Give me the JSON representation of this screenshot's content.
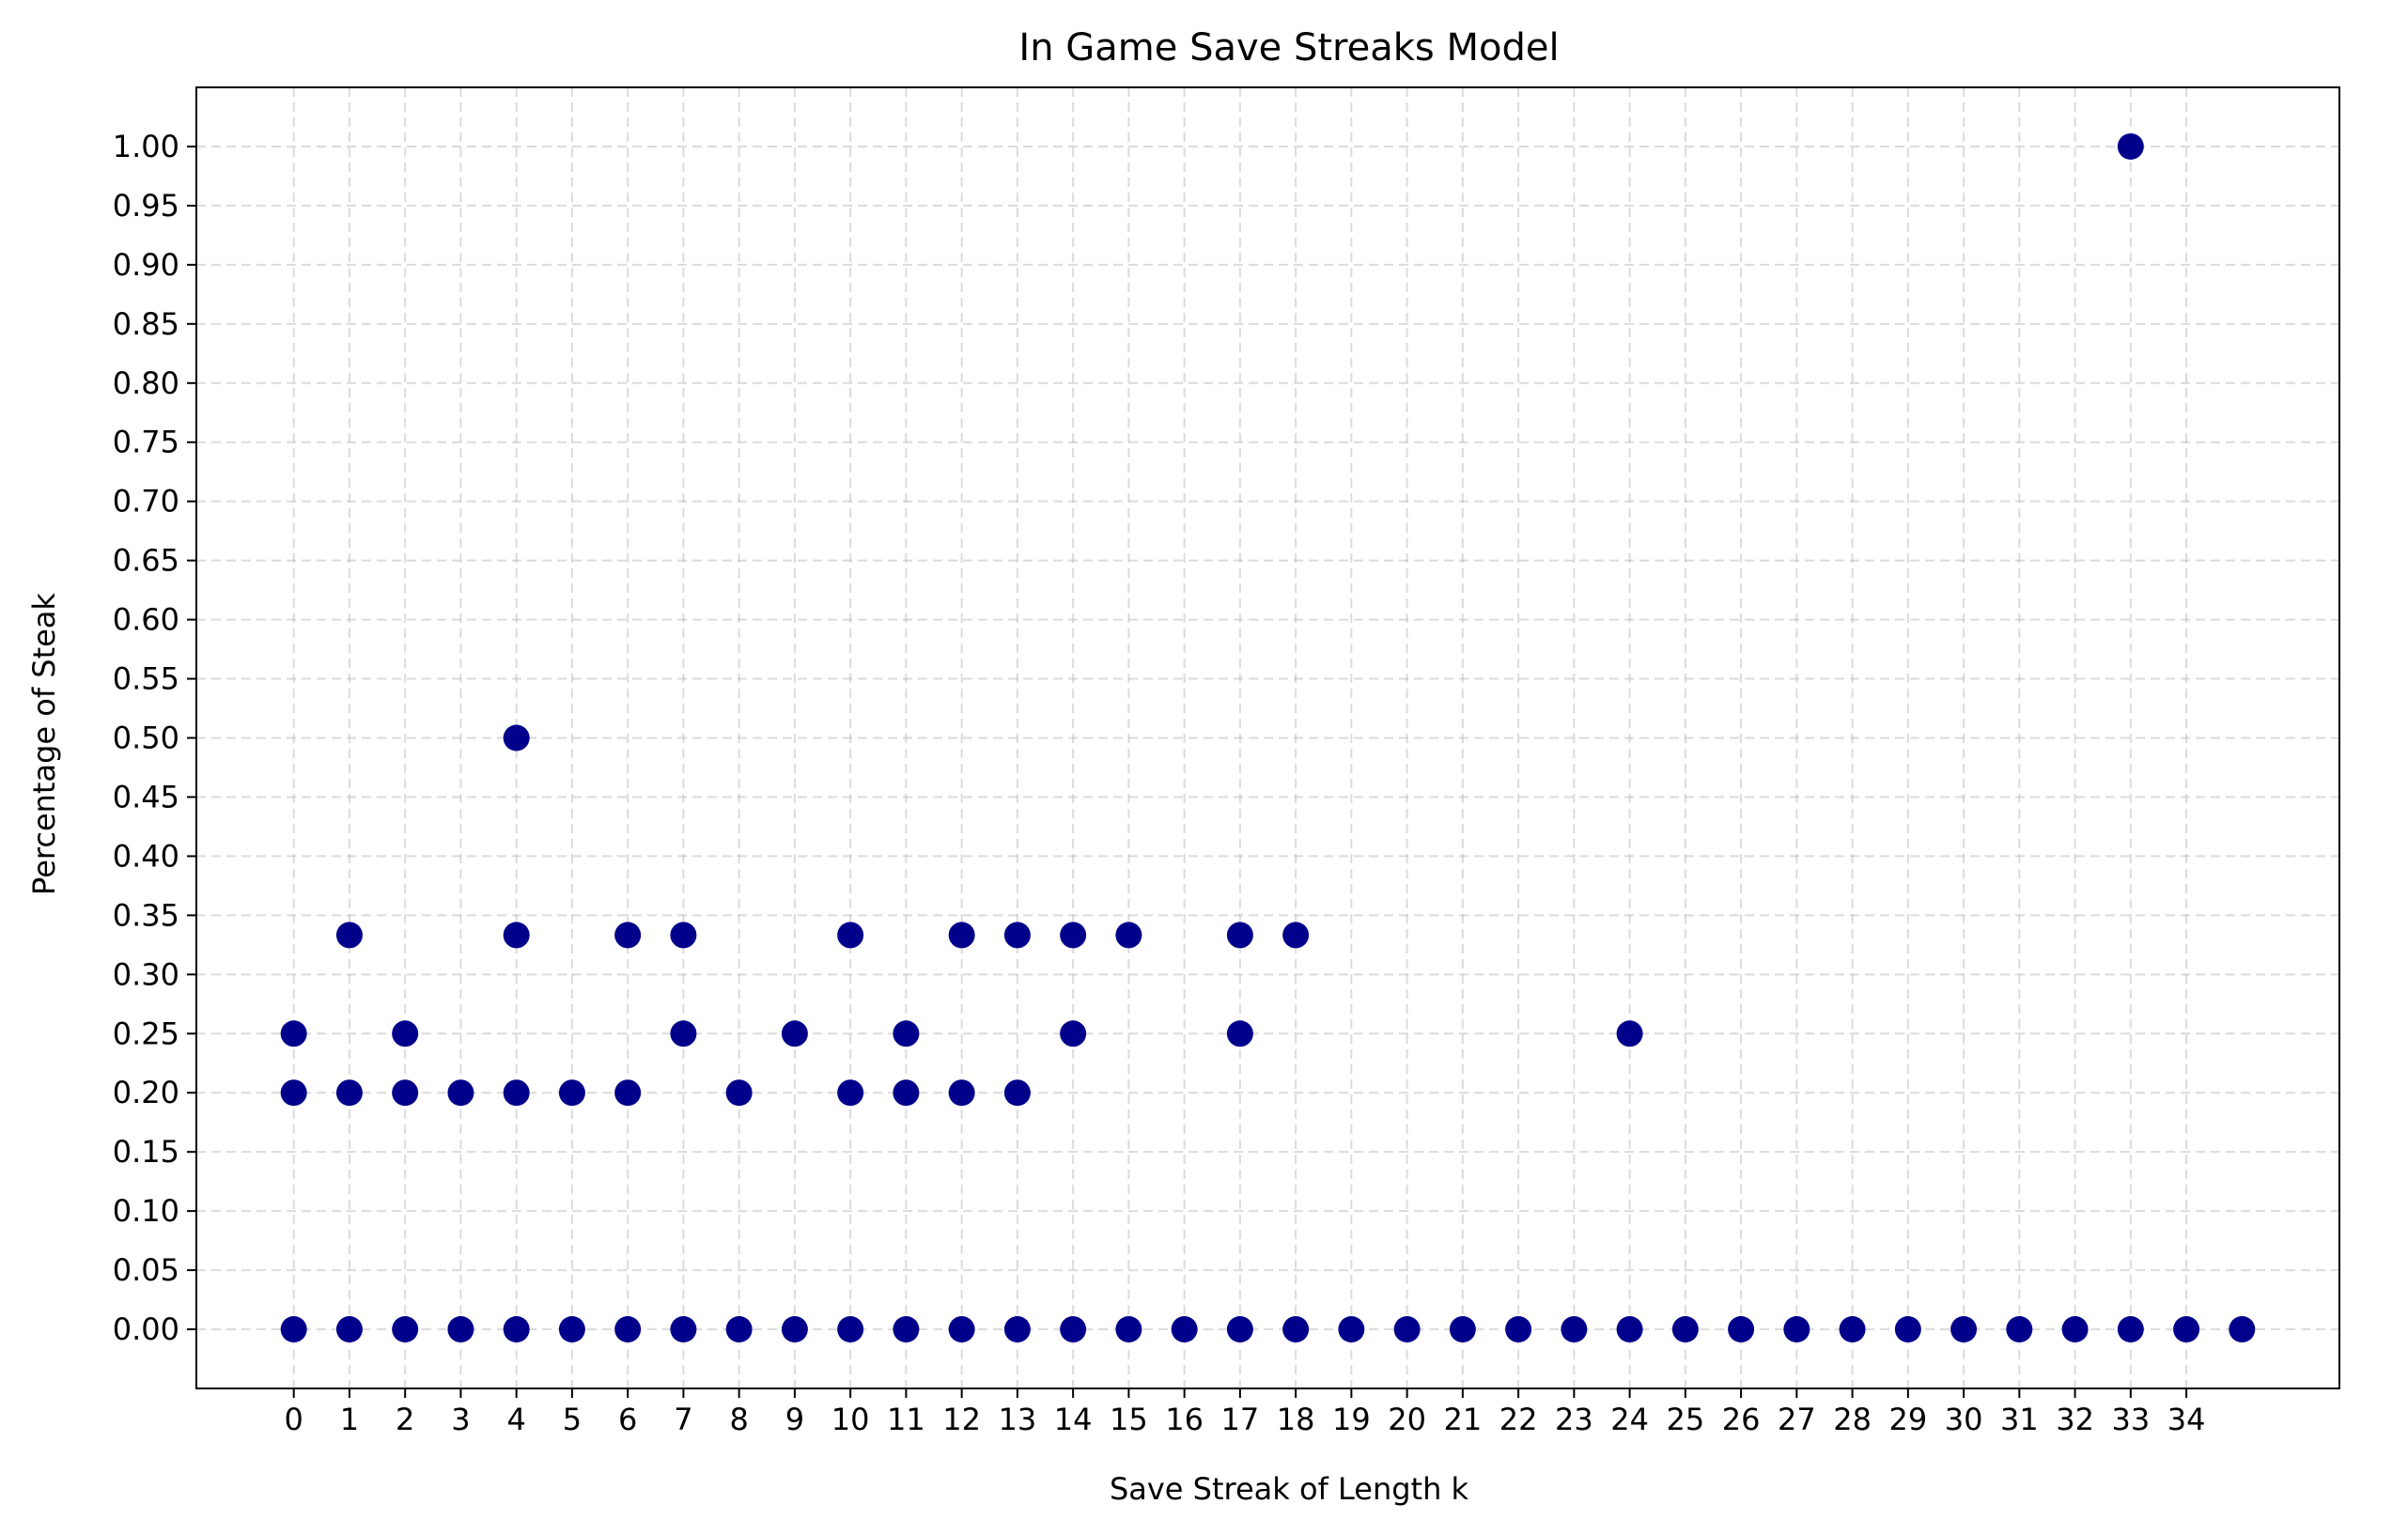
{
  "chart_data": {
    "type": "scatter",
    "title": "In Game Save Streaks Model",
    "xlabel": "Save Streak of Length k",
    "ylabel": "Percentage of Steak",
    "xlim": [
      -1.75,
      36.75
    ],
    "ylim": [
      -0.05,
      1.05
    ],
    "xticks": [
      0,
      1,
      2,
      3,
      4,
      5,
      6,
      7,
      8,
      9,
      10,
      11,
      12,
      13,
      14,
      15,
      16,
      17,
      18,
      19,
      20,
      21,
      22,
      23,
      24,
      25,
      26,
      27,
      28,
      29,
      30,
      31,
      32,
      33,
      34
    ],
    "yticks": [
      "0.00",
      "0.05",
      "0.10",
      "0.15",
      "0.20",
      "0.25",
      "0.30",
      "0.35",
      "0.40",
      "0.45",
      "0.50",
      "0.55",
      "0.60",
      "0.65",
      "0.70",
      "0.75",
      "0.80",
      "0.85",
      "0.90",
      "0.95",
      "1.00"
    ],
    "grid": true,
    "marker_color": "#00008b",
    "points": [
      {
        "x": 0,
        "y": 0.25
      },
      {
        "x": 0,
        "y": 0.2
      },
      {
        "x": 0,
        "y": 0
      },
      {
        "x": 1,
        "y": 0.3333
      },
      {
        "x": 1,
        "y": 0.2
      },
      {
        "x": 1,
        "y": 0
      },
      {
        "x": 2,
        "y": 0.25
      },
      {
        "x": 2,
        "y": 0.2
      },
      {
        "x": 2,
        "y": 0
      },
      {
        "x": 3,
        "y": 0.2
      },
      {
        "x": 3,
        "y": 0
      },
      {
        "x": 4,
        "y": 0.5
      },
      {
        "x": 4,
        "y": 0.3333
      },
      {
        "x": 4,
        "y": 0.2
      },
      {
        "x": 4,
        "y": 0
      },
      {
        "x": 5,
        "y": 0.2
      },
      {
        "x": 5,
        "y": 0
      },
      {
        "x": 6,
        "y": 0.3333
      },
      {
        "x": 6,
        "y": 0.2
      },
      {
        "x": 6,
        "y": 0
      },
      {
        "x": 7,
        "y": 0.3333
      },
      {
        "x": 7,
        "y": 0.25
      },
      {
        "x": 7,
        "y": 0
      },
      {
        "x": 8,
        "y": 0.2
      },
      {
        "x": 8,
        "y": 0
      },
      {
        "x": 9,
        "y": 0.25
      },
      {
        "x": 9,
        "y": 0
      },
      {
        "x": 10,
        "y": 0.3333
      },
      {
        "x": 10,
        "y": 0.2
      },
      {
        "x": 10,
        "y": 0
      },
      {
        "x": 11,
        "y": 0.25
      },
      {
        "x": 11,
        "y": 0.2
      },
      {
        "x": 11,
        "y": 0
      },
      {
        "x": 12,
        "y": 0.3333
      },
      {
        "x": 12,
        "y": 0.2
      },
      {
        "x": 12,
        "y": 0
      },
      {
        "x": 13,
        "y": 0.3333
      },
      {
        "x": 13,
        "y": 0.2
      },
      {
        "x": 13,
        "y": 0
      },
      {
        "x": 14,
        "y": 0.3333
      },
      {
        "x": 14,
        "y": 0.25
      },
      {
        "x": 14,
        "y": 0
      },
      {
        "x": 15,
        "y": 0.3333
      },
      {
        "x": 15,
        "y": 0
      },
      {
        "x": 16,
        "y": 0
      },
      {
        "x": 17,
        "y": 0.3333
      },
      {
        "x": 17,
        "y": 0.25
      },
      {
        "x": 17,
        "y": 0
      },
      {
        "x": 18,
        "y": 0.3333
      },
      {
        "x": 18,
        "y": 0
      },
      {
        "x": 19,
        "y": 0
      },
      {
        "x": 20,
        "y": 0
      },
      {
        "x": 21,
        "y": 0
      },
      {
        "x": 22,
        "y": 0
      },
      {
        "x": 23,
        "y": 0
      },
      {
        "x": 24,
        "y": 0.25
      },
      {
        "x": 24,
        "y": 0
      },
      {
        "x": 25,
        "y": 0
      },
      {
        "x": 26,
        "y": 0
      },
      {
        "x": 27,
        "y": 0
      },
      {
        "x": 28,
        "y": 0
      },
      {
        "x": 29,
        "y": 0
      },
      {
        "x": 30,
        "y": 0
      },
      {
        "x": 31,
        "y": 0
      },
      {
        "x": 32,
        "y": 0
      },
      {
        "x": 33,
        "y": 1.0
      },
      {
        "x": 33,
        "y": 0
      },
      {
        "x": 34,
        "y": 0
      },
      {
        "x": 35,
        "y": 0
      }
    ]
  }
}
